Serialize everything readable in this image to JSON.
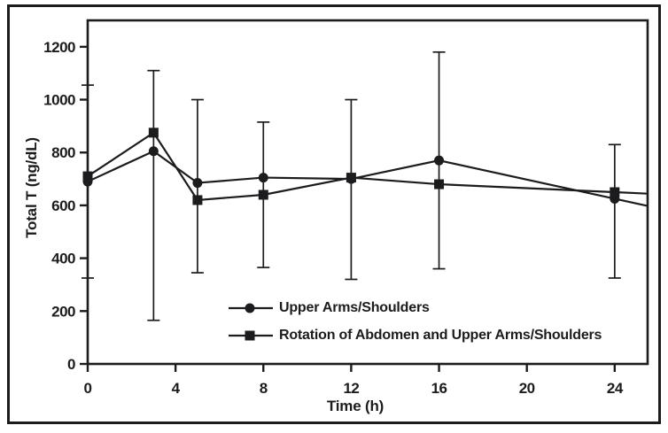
{
  "chart_data": {
    "type": "line",
    "title": "",
    "xlabel": "Time (h)",
    "ylabel": "Total T (ng/dL)",
    "x": [
      0,
      3,
      5,
      8,
      12,
      16,
      24
    ],
    "series": [
      {
        "name": "Upper Arms/Shoulders",
        "marker": "circle",
        "values": [
          690,
          805,
          685,
          705,
          700,
          770,
          625
        ]
      },
      {
        "name": "Rotation of Abdomen and Upper Arms/Shoulders",
        "marker": "square",
        "values": [
          710,
          875,
          620,
          640,
          705,
          680,
          650
        ]
      }
    ],
    "error_bars": [
      {
        "x": 0,
        "low": 325,
        "high": 1055
      },
      {
        "x": 3,
        "low": 165,
        "high": 1110
      },
      {
        "x": 5,
        "low": 345,
        "high": 1000
      },
      {
        "x": 8,
        "low": 365,
        "high": 915
      },
      {
        "x": 12,
        "low": 320,
        "high": 1000
      },
      {
        "x": 16,
        "low": 360,
        "high": 1180
      },
      {
        "x": 24,
        "low": 325,
        "high": 830
      }
    ],
    "x_ticks": [
      0,
      4,
      8,
      12,
      16,
      20,
      24
    ],
    "y_ticks": [
      0,
      200,
      400,
      600,
      800,
      1000,
      1200
    ],
    "xlim": [
      0,
      25.5
    ],
    "ylim": [
      0,
      1300
    ],
    "grid": false,
    "legend_position": "inside-bottom-center",
    "ink_color": "#1c1c1e",
    "background_color": "#ffffff"
  }
}
